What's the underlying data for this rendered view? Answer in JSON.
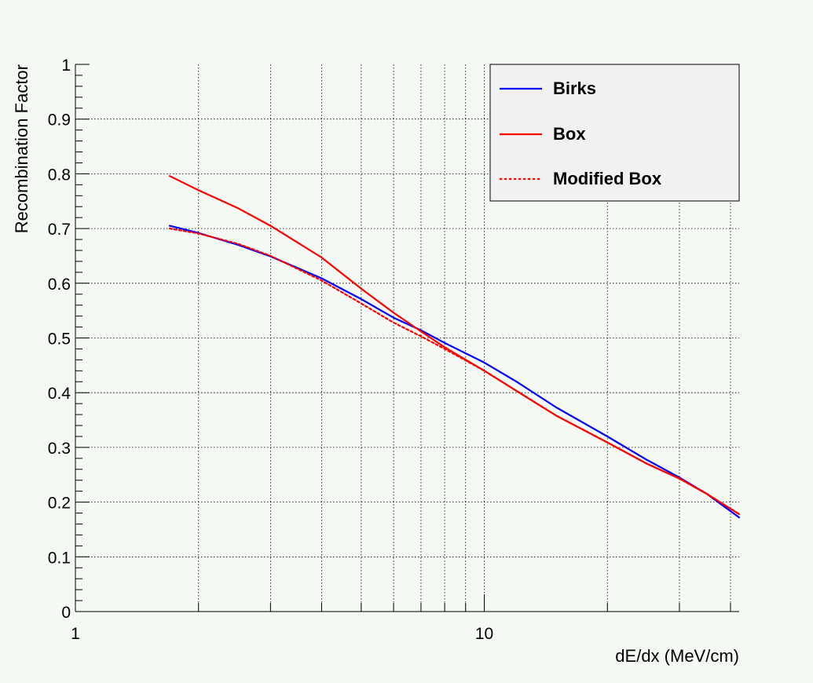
{
  "chart_data": {
    "type": "line",
    "title": "",
    "xlabel": "dE/dx (MeV/cm)",
    "ylabel": "Recombination Factor",
    "xscale": "log",
    "xlim": [
      1,
      42
    ],
    "ylim": [
      0,
      1
    ],
    "x_tick_labels": [
      "1",
      "10"
    ],
    "y_tick_labels": [
      "0",
      "0.1",
      "0.2",
      "0.3",
      "0.4",
      "0.5",
      "0.6",
      "0.7",
      "0.8",
      "0.9",
      "1"
    ],
    "grid": true,
    "legend": {
      "position": "top-right"
    },
    "series": [
      {
        "name": "Birks",
        "color": "#0000ff",
        "style": "solid",
        "x": [
          1.7,
          2,
          2.5,
          3,
          4,
          5,
          6,
          7,
          8,
          10,
          12,
          15,
          20,
          25,
          30,
          35,
          42
        ],
        "y": [
          0.705,
          0.692,
          0.67,
          0.649,
          0.609,
          0.571,
          0.537,
          0.514,
          0.491,
          0.455,
          0.42,
          0.373,
          0.32,
          0.277,
          0.245,
          0.215,
          0.172
        ]
      },
      {
        "name": "Box",
        "color": "#ff0000",
        "style": "solid",
        "x": [
          1.7,
          2,
          2.5,
          3,
          4,
          5,
          6,
          7,
          8,
          10,
          12,
          15,
          20,
          25,
          30,
          35,
          42
        ],
        "y": [
          0.796,
          0.77,
          0.737,
          0.705,
          0.647,
          0.59,
          0.546,
          0.512,
          0.483,
          0.44,
          0.403,
          0.358,
          0.309,
          0.27,
          0.243,
          0.215,
          0.178
        ]
      },
      {
        "name": "Modified Box",
        "color": "#ff0000",
        "style": "dotted",
        "x": [
          1.7,
          2,
          2.5,
          3,
          4,
          5,
          6,
          7,
          8,
          10,
          12,
          15,
          20,
          25,
          30,
          35,
          42
        ],
        "y": [
          0.7,
          0.691,
          0.672,
          0.65,
          0.605,
          0.563,
          0.528,
          0.503,
          0.48,
          0.44,
          0.403,
          0.358,
          0.309,
          0.27,
          0.243,
          0.215,
          0.178
        ]
      }
    ]
  }
}
